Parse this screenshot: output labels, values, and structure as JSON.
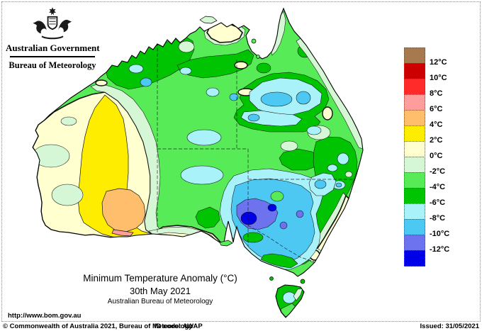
{
  "header": {
    "government": "Australian Government",
    "bureau": "Bureau of Meteorology"
  },
  "title": {
    "product": "Minimum Temperature Anomaly (°C)",
    "date": "30th May 2021",
    "org": "Australian Bureau of Meteorology"
  },
  "legend": {
    "boundary_labels": [
      "12°C",
      "10°C",
      "8°C",
      "6°C",
      "4°C",
      "2°C",
      "0°C",
      "-2°C",
      "-4°C",
      "-6°C",
      "-8°C",
      "-10°C",
      "-12°C"
    ],
    "colors": [
      "#A67A4E",
      "#CC0000",
      "#FF2A2A",
      "#FF9C9C",
      "#FFBE6B",
      "#FFED00",
      "#FFFFD0",
      "#D5F7D5",
      "#57EC57",
      "#00C301",
      "#AAF2FA",
      "#4CC8F2",
      "#6D72EE",
      "#0000E8"
    ]
  },
  "footer": {
    "url": "http://www.bom.gov.au",
    "copyright": "© Commonwealth of Australia 2021, Bureau of Meteorology",
    "id_code": "ID code: AWAP",
    "issued": "Issued: 31/05/2021"
  },
  "map": {
    "region": "Australia",
    "kind": "filled contour map of daily minimum temperature anomaly",
    "anomaly_highlights": [
      {
        "area": "central-west Western Australia",
        "anomaly_c": "0 to +4"
      },
      {
        "area": "far southwest WA interior",
        "anomaly_c": "+4 to +8"
      },
      {
        "area": "most of NT, Queensland and eastern interior",
        "anomaly_c": "-2 to -6"
      },
      {
        "area": "NT/Qld border and inland Queensland patches",
        "anomaly_c": "-6 to -8"
      },
      {
        "area": "northern SA / western NSW / NW Victoria cold pool",
        "anomaly_c": "-8 to below -12"
      },
      {
        "area": "Darwin area and parts of east coast",
        "anomaly_c": "0 to +2"
      },
      {
        "area": "Tasmania",
        "anomaly_c": "-4 to -8"
      }
    ]
  }
}
